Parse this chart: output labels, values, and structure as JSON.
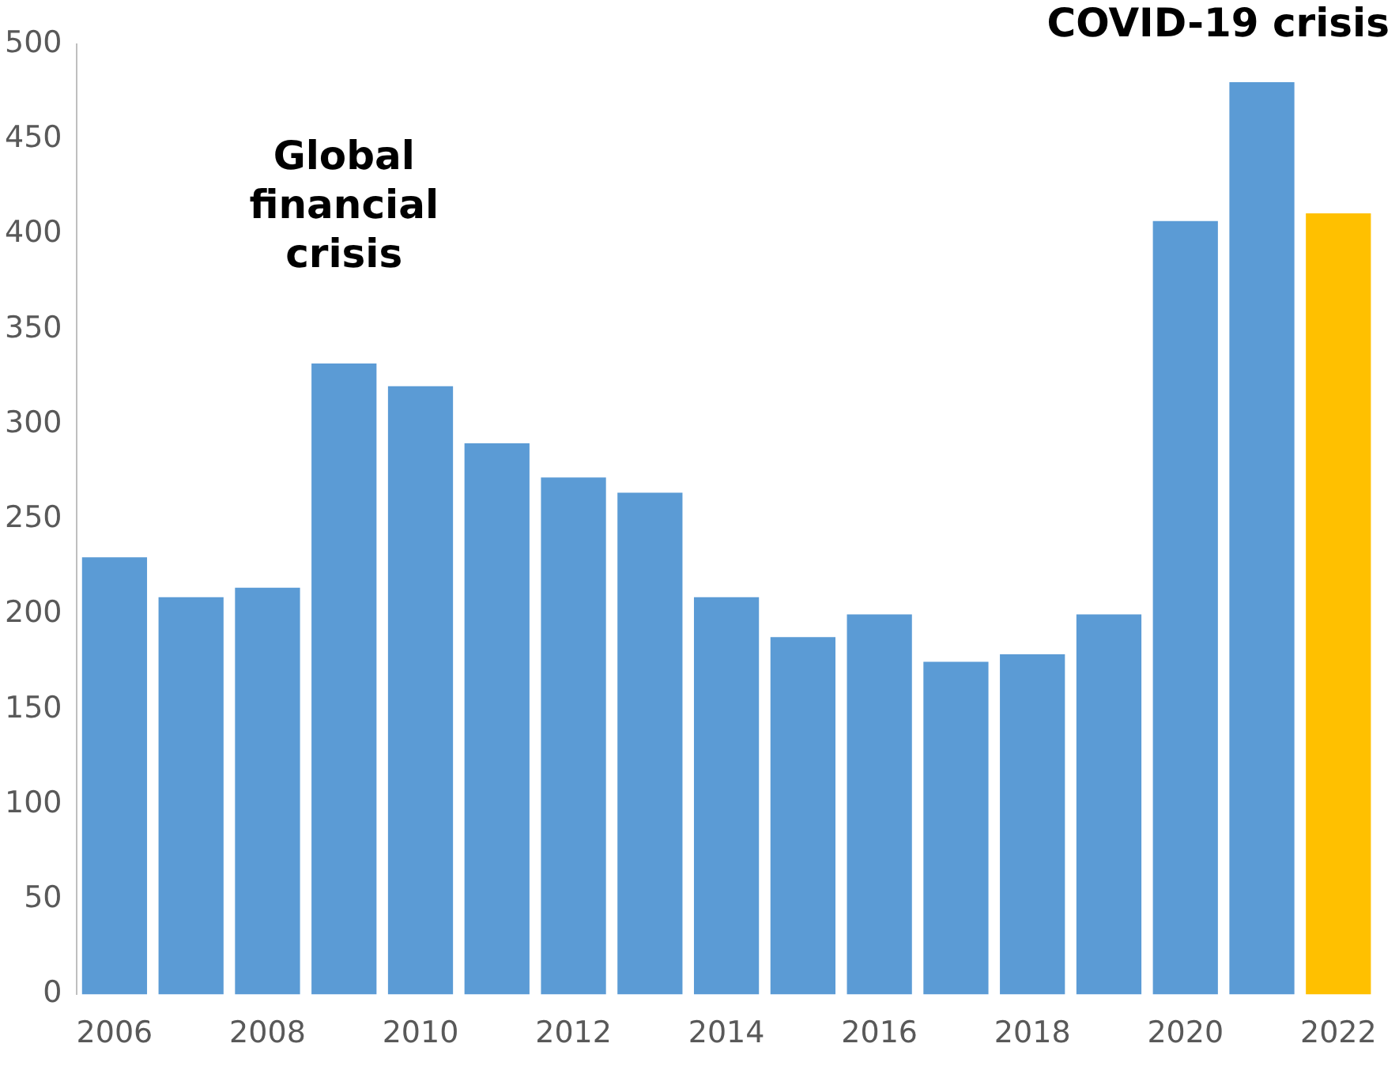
{
  "chart_data": {
    "type": "bar",
    "categories": [
      "2006",
      null,
      "2008",
      null,
      "2010",
      null,
      "2012",
      null,
      "2014",
      null,
      "2016",
      null,
      "2018",
      null,
      "2020",
      null,
      "2022"
    ],
    "values": [
      230,
      209,
      214,
      332,
      320,
      290,
      272,
      264,
      209,
      188,
      200,
      175,
      179,
      200,
      407,
      480,
      411
    ],
    "colors": [
      "#5b9bd5",
      "#5b9bd5",
      "#5b9bd5",
      "#5b9bd5",
      "#5b9bd5",
      "#5b9bd5",
      "#5b9bd5",
      "#5b9bd5",
      "#5b9bd5",
      "#5b9bd5",
      "#5b9bd5",
      "#5b9bd5",
      "#5b9bd5",
      "#5b9bd5",
      "#5b9bd5",
      "#5b9bd5",
      "#ffc000"
    ],
    "ylim": [
      0,
      500
    ],
    "yticks": [
      0,
      50,
      100,
      150,
      200,
      250,
      300,
      350,
      400,
      450,
      500
    ],
    "grid": false,
    "legend": false,
    "annotations": [
      "Global financial crisis",
      "COVID-19 crisis"
    ]
  }
}
